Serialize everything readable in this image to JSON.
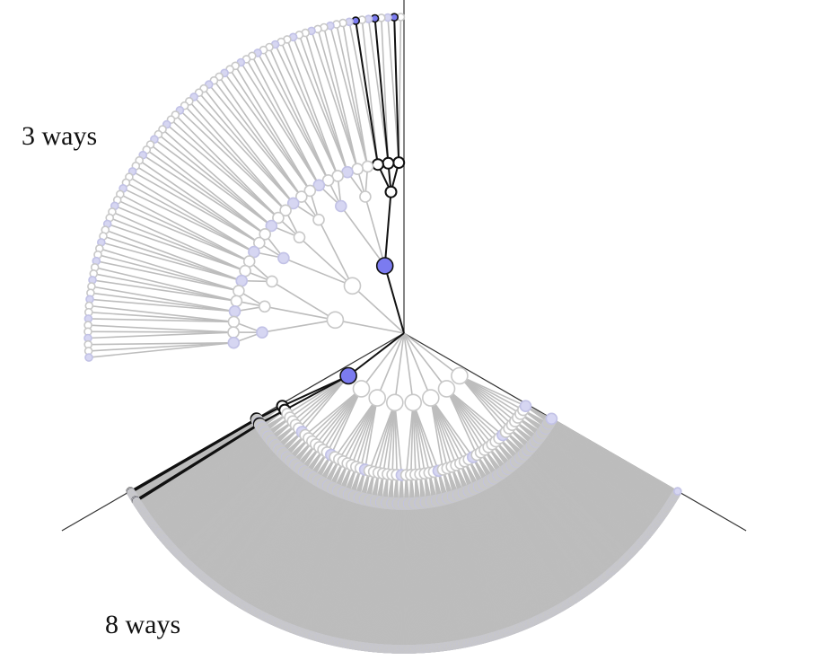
{
  "labels": {
    "top": "3 ways",
    "bottom": "8 ways"
  },
  "colors": {
    "divider": "#333333",
    "edge_inactive": "#bdbdbd",
    "edge_active": "#111111",
    "node_gray_stroke": "#c8c8c8",
    "node_fill_white": "#ffffff",
    "node_light_fill": "#d6d6f2",
    "node_light_stroke": "#c2c2e6",
    "node_active_fill": "#7b7bf0",
    "node_active_stroke": "#111111"
  },
  "sectors": [
    {
      "name": "top-left",
      "angle_range_deg": [
        90,
        185
      ],
      "branching": 3,
      "active_paths": [
        [
          0,
          0,
          0,
          1
        ],
        [
          0,
          0,
          1,
          1
        ],
        [
          0,
          0,
          2,
          1
        ]
      ]
    },
    {
      "name": "bottom",
      "angle_range_deg": [
        210,
        330
      ],
      "branching": 8,
      "active_paths": [
        [
          0,
          0,
          0,
          0
        ],
        [
          0,
          0,
          0,
          1
        ],
        [
          0,
          0,
          1,
          0
        ],
        [
          0,
          0,
          1,
          1
        ],
        [
          0,
          1,
          0,
          0
        ],
        [
          0,
          1,
          0,
          1
        ],
        [
          0,
          1,
          1,
          0
        ],
        [
          0,
          1,
          1,
          1
        ]
      ]
    }
  ]
}
